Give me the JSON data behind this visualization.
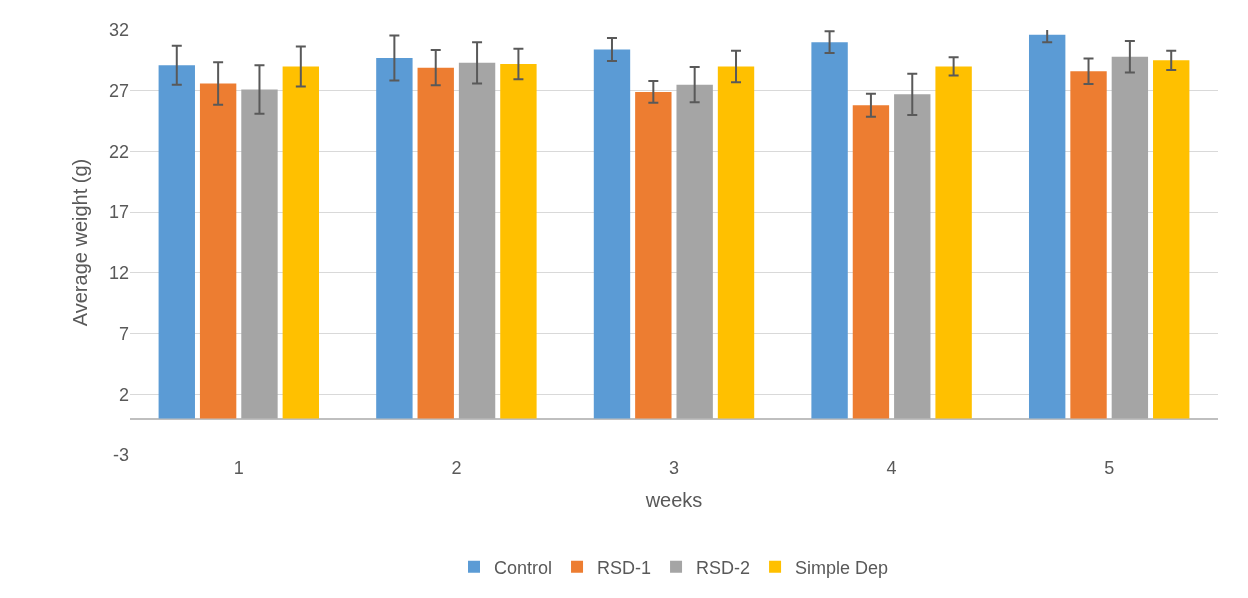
{
  "chart_data": {
    "type": "bar",
    "xlabel": "weeks",
    "ylabel": "Average weight (g)",
    "categories": [
      "1",
      "2",
      "3",
      "4",
      "5"
    ],
    "series": [
      {
        "name": "Control",
        "color": "#5b9bd5",
        "values": [
          29.1,
          29.7,
          30.4,
          31.0,
          31.6
        ],
        "errors": [
          1.6,
          1.85,
          0.95,
          0.9,
          0.6
        ]
      },
      {
        "name": "RSD-1",
        "color": "#ed7d31",
        "values": [
          27.6,
          28.9,
          26.9,
          25.8,
          28.6
        ],
        "errors": [
          1.75,
          1.45,
          0.9,
          0.95,
          1.05
        ]
      },
      {
        "name": "RSD-2",
        "color": "#a5a5a5",
        "values": [
          27.1,
          29.3,
          27.5,
          26.7,
          29.8
        ],
        "errors": [
          2.0,
          1.7,
          1.45,
          1.7,
          1.3
        ]
      },
      {
        "name": "Simple Dep",
        "color": "#ffc000",
        "values": [
          29.0,
          29.2,
          29.0,
          29.0,
          29.5
        ],
        "errors": [
          1.65,
          1.25,
          1.3,
          0.75,
          0.8
        ]
      }
    ],
    "ylim": [
      -3,
      32
    ],
    "yticks": [
      -3,
      2,
      7,
      12,
      17,
      22,
      27,
      32
    ],
    "grid": "y",
    "legend": "bottom"
  }
}
